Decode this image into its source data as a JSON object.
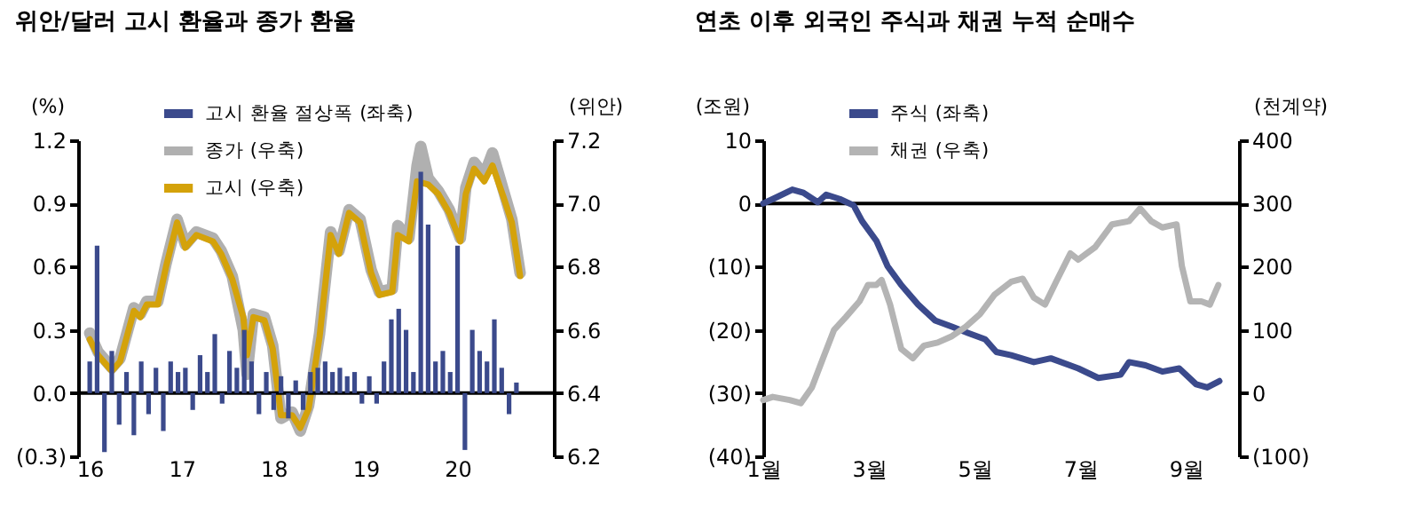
{
  "chart_data": [
    {
      "type": "line",
      "title": "위안/달러 고시 환율과 종가 환율",
      "ylabel": "(%)",
      "y2label": "(위안)",
      "legend": "top",
      "xlim": [
        2015.97,
        2020.95
      ],
      "xticks": [
        {
          "value": 2016,
          "label": "16"
        },
        {
          "value": 2017,
          "label": "17"
        },
        {
          "value": 2018,
          "label": "18"
        },
        {
          "value": 2019,
          "label": "19"
        },
        {
          "value": 2020,
          "label": "20"
        }
      ],
      "ylim": [
        -0.3,
        1.2
      ],
      "yticks": [
        {
          "value": -0.3,
          "label": "(0.3)"
        },
        {
          "value": 0,
          "label": "0.0"
        },
        {
          "value": 0.3,
          "label": "0.3"
        },
        {
          "value": 0.6,
          "label": "0.6"
        },
        {
          "value": 0.9,
          "label": "0.9"
        },
        {
          "value": 1.2,
          "label": "1.2"
        }
      ],
      "y2lim": [
        6.2,
        7.2
      ],
      "y2ticks": [
        {
          "value": 6.2,
          "label": "6.2"
        },
        {
          "value": 6.4,
          "label": "6.4"
        },
        {
          "value": 6.6,
          "label": "6.6"
        },
        {
          "value": 6.8,
          "label": "6.8"
        },
        {
          "value": 7.0,
          "label": "7.0"
        },
        {
          "value": 7.2,
          "label": "7.2"
        }
      ],
      "ref_lines": [
        {
          "axis": "y",
          "value": 0,
          "color": "#000000"
        }
      ],
      "series": [
        {
          "name": "고시 환율 절상폭 (좌축)",
          "type": "bar",
          "axis": "y",
          "color": "#3b4a8c",
          "x": [
            2016.0,
            2016.08,
            2016.16,
            2016.24,
            2016.32,
            2016.4,
            2016.48,
            2016.56,
            2016.64,
            2016.72,
            2016.8,
            2016.88,
            2016.96,
            2017.04,
            2017.12,
            2017.2,
            2017.28,
            2017.36,
            2017.44,
            2017.52,
            2017.6,
            2017.68,
            2017.76,
            2017.84,
            2017.92,
            2018.0,
            2018.08,
            2018.16,
            2018.24,
            2018.32,
            2018.4,
            2018.48,
            2018.56,
            2018.64,
            2018.72,
            2018.8,
            2018.88,
            2018.96,
            2019.04,
            2019.12,
            2019.2,
            2019.28,
            2019.36,
            2019.44,
            2019.52,
            2019.6,
            2019.68,
            2019.76,
            2019.84,
            2019.92,
            2020.0,
            2020.08,
            2020.16,
            2020.24,
            2020.32,
            2020.4,
            2020.48,
            2020.56,
            2020.64
          ],
          "values": [
            0.15,
            0.7,
            -0.28,
            0.2,
            -0.15,
            0.1,
            -0.2,
            0.15,
            -0.1,
            0.12,
            -0.18,
            0.15,
            0.1,
            0.12,
            -0.08,
            0.18,
            0.1,
            0.28,
            -0.05,
            0.2,
            0.12,
            0.3,
            0.15,
            -0.1,
            0.1,
            -0.08,
            0.08,
            -0.12,
            0.06,
            -0.08,
            0.1,
            0.12,
            0.15,
            0.1,
            0.12,
            0.08,
            0.1,
            -0.05,
            0.08,
            -0.05,
            0.15,
            0.35,
            0.4,
            0.3,
            0.1,
            1.05,
            0.8,
            0.15,
            0.2,
            0.1,
            0.7,
            -0.27,
            0.3,
            0.2,
            0.15,
            0.35,
            0.12,
            -0.1,
            0.05
          ]
        },
        {
          "name": "종가 (우축)",
          "axis": "y2",
          "color": "#b0b0b0",
          "x": [
            2016.0,
            2016.09,
            2016.24,
            2016.33,
            2016.48,
            2016.55,
            2016.62,
            2016.74,
            2016.83,
            2016.95,
            2017.04,
            2017.16,
            2017.34,
            2017.43,
            2017.55,
            2017.67,
            2017.71,
            2017.78,
            2017.9,
            2017.99,
            2018.08,
            2018.2,
            2018.29,
            2018.38,
            2018.5,
            2018.62,
            2018.71,
            2018.82,
            2018.94,
            2019.06,
            2019.15,
            2019.29,
            2019.35,
            2019.47,
            2019.56,
            2019.6,
            2019.68,
            2019.79,
            2019.91,
            2020.03,
            2020.09,
            2020.18,
            2020.29,
            2020.38,
            2020.5,
            2020.59,
            2020.68
          ],
          "values": [
            6.59,
            6.53,
            6.48,
            6.51,
            6.67,
            6.65,
            6.69,
            6.69,
            6.81,
            6.95,
            6.87,
            6.91,
            6.89,
            6.85,
            6.77,
            6.6,
            6.46,
            6.65,
            6.64,
            6.55,
            6.32,
            6.34,
            6.28,
            6.36,
            6.59,
            6.91,
            6.85,
            6.98,
            6.95,
            6.79,
            6.72,
            6.73,
            6.93,
            6.89,
            7.12,
            7.18,
            7.08,
            7.04,
            6.98,
            6.89,
            7.05,
            7.13,
            7.09,
            7.16,
            7.04,
            6.95,
            6.78
          ]
        },
        {
          "name": "고시 (우축)",
          "axis": "y2",
          "color": "#d4a20a",
          "x": [
            2016.0,
            2016.09,
            2016.24,
            2016.33,
            2016.48,
            2016.55,
            2016.62,
            2016.74,
            2016.83,
            2016.95,
            2017.04,
            2017.16,
            2017.34,
            2017.43,
            2017.55,
            2017.67,
            2017.71,
            2017.78,
            2017.9,
            2017.99,
            2018.08,
            2018.2,
            2018.29,
            2018.38,
            2018.5,
            2018.62,
            2018.71,
            2018.82,
            2018.94,
            2019.06,
            2019.15,
            2019.29,
            2019.35,
            2019.47,
            2019.56,
            2019.68,
            2019.79,
            2019.91,
            2020.03,
            2020.09,
            2020.18,
            2020.29,
            2020.38,
            2020.5,
            2020.59,
            2020.68
          ],
          "values": [
            6.57,
            6.52,
            6.47,
            6.5,
            6.66,
            6.64,
            6.68,
            6.68,
            6.8,
            6.94,
            6.86,
            6.9,
            6.88,
            6.84,
            6.76,
            6.64,
            6.52,
            6.64,
            6.63,
            6.54,
            6.33,
            6.33,
            6.29,
            6.35,
            6.58,
            6.9,
            6.84,
            6.97,
            6.94,
            6.78,
            6.71,
            6.72,
            6.9,
            6.88,
            7.07,
            7.06,
            7.03,
            6.97,
            6.88,
            7.03,
            7.11,
            7.07,
            7.12,
            7.02,
            6.94,
            6.77
          ]
        }
      ]
    },
    {
      "type": "line",
      "title": "연초 이후 외국인 주식과 채권 누적 순매수",
      "ylabel": "(조원)",
      "y2label": "(천계약)",
      "legend": "top",
      "xlim": [
        1,
        10
      ],
      "xticks": [
        {
          "value": 1,
          "label": "1월"
        },
        {
          "value": 3,
          "label": "3월"
        },
        {
          "value": 5,
          "label": "5월"
        },
        {
          "value": 7,
          "label": "7월"
        },
        {
          "value": 9,
          "label": "9월"
        }
      ],
      "ylim": [
        -40,
        10
      ],
      "yticks": [
        {
          "value": -40,
          "label": "(40)"
        },
        {
          "value": -30,
          "label": "(30)"
        },
        {
          "value": -20,
          "label": "(20)"
        },
        {
          "value": -10,
          "label": "(10)"
        },
        0,
        10
      ],
      "y2lim": [
        -100,
        400
      ],
      "y2ticks": [
        {
          "value": -100,
          "label": "(100)"
        },
        0,
        100,
        200,
        300,
        400
      ],
      "ref_lines": [
        {
          "axis": "y",
          "value": 0,
          "color": "#000000"
        }
      ],
      "series": [
        {
          "name": "주식 (좌축)",
          "axis": "y",
          "color": "#3b4a8c",
          "x": [
            1.0,
            1.18,
            1.55,
            1.76,
            2.03,
            2.19,
            2.45,
            2.71,
            2.87,
            3.14,
            3.35,
            3.61,
            3.93,
            4.25,
            4.57,
            4.88,
            5.2,
            5.41,
            5.69,
            6.12,
            6.44,
            6.96,
            7.34,
            7.76,
            7.92,
            8.23,
            8.55,
            8.87,
            9.19,
            9.4,
            9.63
          ],
          "values": [
            0,
            0.7,
            2.2,
            1.7,
            0.2,
            1.4,
            0.7,
            -0.3,
            -2.8,
            -5.9,
            -9.9,
            -12.9,
            -16.0,
            -18.5,
            -19.5,
            -20.5,
            -21.5,
            -23.5,
            -24.0,
            -25.1,
            -24.5,
            -26.1,
            -27.6,
            -27.1,
            -25.1,
            -25.6,
            -26.6,
            -26.1,
            -28.6,
            -29.1,
            -28.1
          ]
        },
        {
          "name": "채권 (우축)",
          "axis": "y2",
          "color": "#b4b4b4",
          "x": [
            1.0,
            1.18,
            1.5,
            1.71,
            1.92,
            2.13,
            2.34,
            2.56,
            2.82,
            2.98,
            3.14,
            3.24,
            3.4,
            3.61,
            3.83,
            4.04,
            4.3,
            4.57,
            4.83,
            5.1,
            5.38,
            5.69,
            5.91,
            6.12,
            6.33,
            6.54,
            6.81,
            6.96,
            7.28,
            7.6,
            7.92,
            8.13,
            8.34,
            8.55,
            8.82,
            8.92,
            9.08,
            9.29,
            9.45,
            9.61
          ],
          "values": [
            -11,
            -6,
            -11,
            -16,
            9,
            55,
            100,
            120,
            145,
            171,
            171,
            179,
            140,
            70,
            55,
            75,
            80,
            90,
            105,
            125,
            156,
            176,
            181,
            151,
            140,
            176,
            221,
            211,
            231,
            267,
            272,
            292,
            272,
            262,
            267,
            201,
            145,
            145,
            140,
            171
          ]
        }
      ]
    }
  ]
}
